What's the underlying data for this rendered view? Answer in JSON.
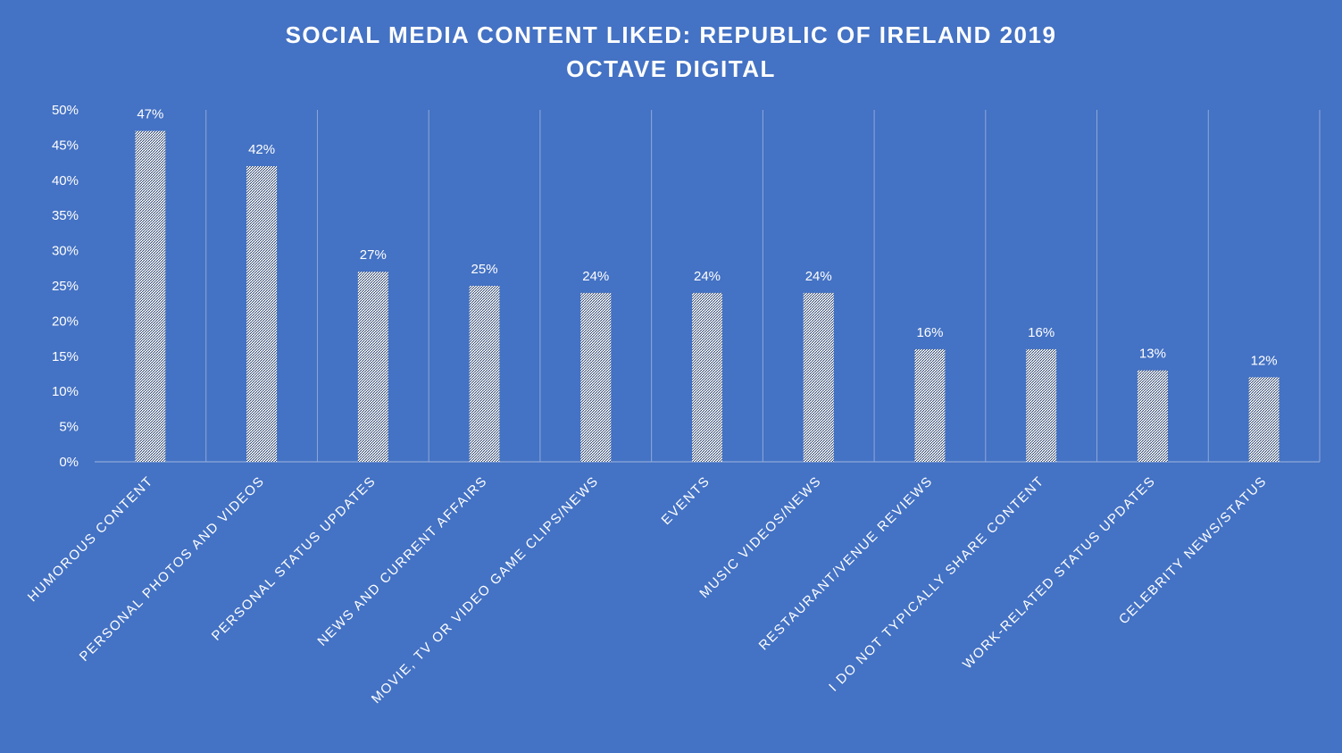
{
  "chart_data": {
    "type": "bar",
    "title": "SOCIAL MEDIA CONTENT LIKED: REPUBLIC OF IRELAND 2019",
    "subtitle": "OCTAVE DIGITAL",
    "xlabel": "",
    "ylabel": "",
    "categories": [
      "HUMOROUS CONTENT",
      "PERSONAL PHOTOS AND VIDEOS",
      "PERSONAL STATUS UPDATES",
      "NEWS AND CURRENT AFFAIRS",
      "MOVIE, TV  OR VIDEO GAME CLIPS/NEWS",
      "EVENTS",
      "MUSIC VIDEOS/NEWS",
      "RESTAURANT/VENUE REVIEWS",
      "I DO NOT TYPICALLY SHARE CONTENT",
      "WORK-RELATED STATUS UPDATES",
      "CELEBRITY NEWS/STATUS"
    ],
    "values": [
      47,
      42,
      27,
      25,
      24,
      24,
      24,
      16,
      16,
      13,
      12
    ],
    "data_labels": [
      "47%",
      "42%",
      "27%",
      "25%",
      "24%",
      "24%",
      "24%",
      "16%",
      "16%",
      "13%",
      "12%"
    ],
    "ylim": [
      0,
      50
    ],
    "yticks": [
      0,
      5,
      10,
      15,
      20,
      25,
      30,
      35,
      40,
      45,
      50
    ],
    "ytick_labels": [
      "0%",
      "5%",
      "10%",
      "15%",
      "20%",
      "25%",
      "30%",
      "35%",
      "40%",
      "45%",
      "50%"
    ],
    "grid": "vertical category separators",
    "legend": "none",
    "colors": {
      "background": "#4472C4",
      "bar_fill": "#FFFFFF",
      "bar_pattern": "#1F3864",
      "text": "#FFFFFF",
      "gridline": "#8EA9DB"
    }
  }
}
